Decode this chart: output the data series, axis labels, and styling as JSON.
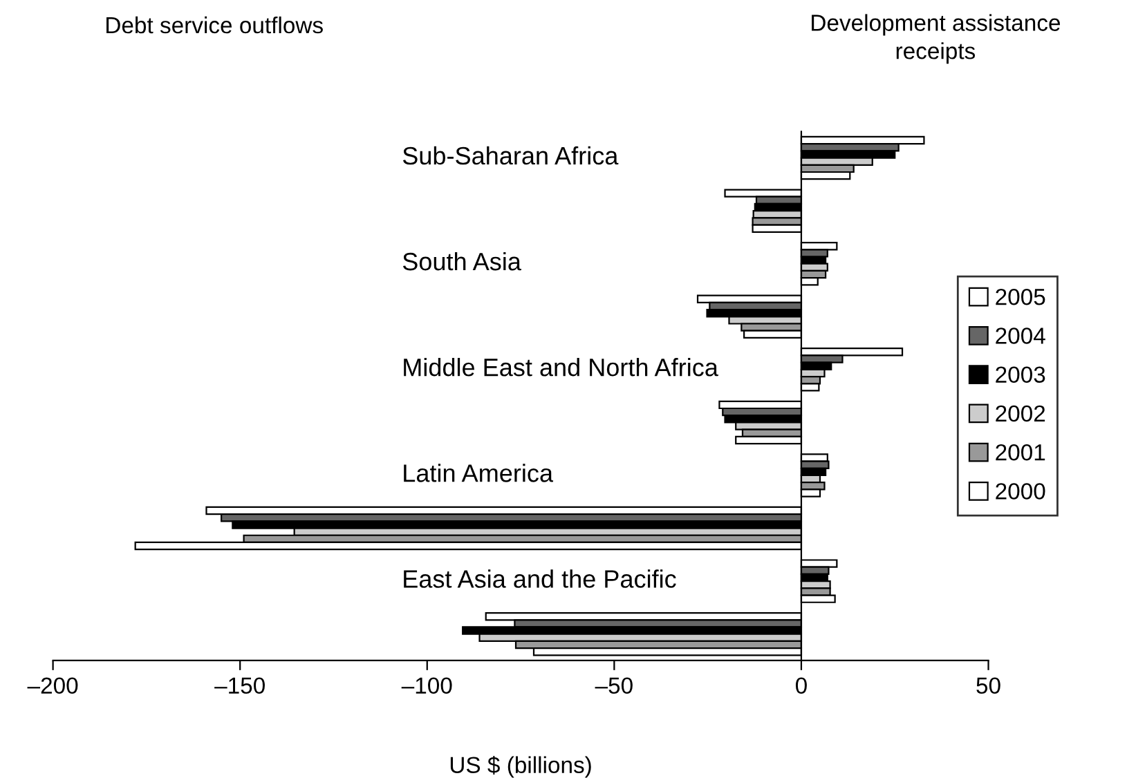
{
  "chart_data": {
    "type": "bar",
    "orientation": "horizontal",
    "categories": [
      "Sub-Saharan Africa",
      null,
      "South Asia",
      null,
      "Middle East and North Africa",
      null,
      "Latin America",
      null,
      "East Asia and the Pacific",
      null
    ],
    "series": [
      {
        "name": "2005",
        "color": "#ffffff",
        "values": [
          32.8,
          -20.4,
          9.5,
          -27.7,
          27,
          -21.9,
          7,
          -159,
          9.5,
          -84.3
        ]
      },
      {
        "name": "2004",
        "color": "#666666",
        "values": [
          26,
          -12,
          7,
          -24.5,
          11,
          -21,
          7.3,
          -155,
          7.3,
          -76.6
        ]
      },
      {
        "name": "2003",
        "color": "#000000",
        "values": [
          25,
          -12.4,
          6.5,
          -25.2,
          8,
          -20.4,
          6.5,
          -152,
          7,
          -90.5
        ]
      },
      {
        "name": "2002",
        "color": "#cccccc",
        "values": [
          19,
          -12.8,
          7,
          -19.3,
          6.2,
          -17.5,
          5,
          -135.5,
          7.7,
          -86
        ]
      },
      {
        "name": "2001",
        "color": "#999999",
        "values": [
          14,
          -13,
          6.5,
          -16,
          5,
          -15.7,
          6.2,
          -149,
          7.7,
          -76.3
        ]
      },
      {
        "name": "2000",
        "color": "#ffffff",
        "values": [
          13,
          -13,
          4.4,
          -15.3,
          4.7,
          -17.5,
          5,
          -178,
          9,
          -71.5
        ]
      }
    ],
    "xlim": [
      -200,
      50
    ],
    "xticks": [
      {
        "value": -200,
        "label": "–200"
      },
      {
        "value": -150,
        "label": "–150"
      },
      {
        "value": -100,
        "label": "–100"
      },
      {
        "value": -50,
        "label": "–50"
      },
      0,
      50
    ],
    "xlabel": "US $ (billions)",
    "annotations": [
      "Debt service outflows",
      "Development assistance receipts"
    ],
    "legend": "right"
  }
}
